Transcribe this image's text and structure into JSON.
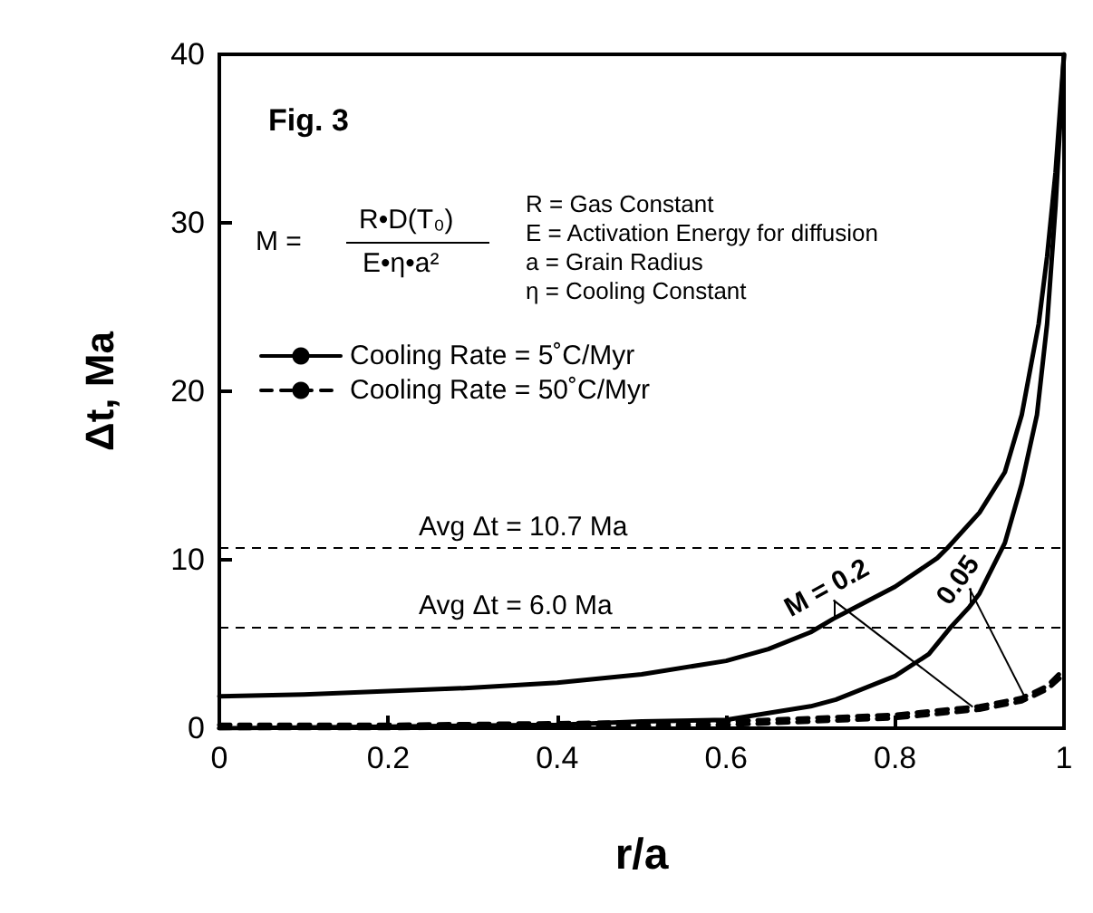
{
  "chart_data": {
    "type": "line",
    "title": "Fig. 3",
    "xlabel": "r/a",
    "ylabel": "Δt, Ma",
    "xlim": [
      0,
      1
    ],
    "xticks": [
      0,
      0.2,
      0.4,
      0.6,
      0.8,
      1
    ],
    "ylim": [
      0,
      40
    ],
    "yticks": [
      0,
      10,
      20,
      30,
      40
    ],
    "grid": false,
    "legend": "top left",
    "marker": "none",
    "series": [
      {
        "name": "Cooling Rate = 5˚C/Myr",
        "color": "#000000",
        "line_style": "solid",
        "x": [
          0,
          0.1,
          0.2,
          0.3,
          0.4,
          0.5,
          0.6,
          0.65,
          0.7,
          0.727,
          0.75,
          0.8,
          0.85,
          0.862,
          0.9,
          0.93,
          0.95,
          0.97,
          0.98,
          0.99,
          1
        ],
        "values": [
          1.9,
          2.0,
          2.2,
          2.4,
          2.7,
          3.2,
          4.0,
          4.7,
          5.7,
          6.5,
          7.1,
          8.4,
          10.1,
          10.7,
          12.8,
          15.2,
          18.6,
          24,
          28,
          33,
          40
        ]
      },
      {
        "color": "#000000",
        "line_style": "solid",
        "x": [
          0,
          0.2,
          0.4,
          0.5,
          0.6,
          0.7,
          0.73,
          0.8,
          0.84,
          0.866,
          0.888,
          0.9,
          0.93,
          0.95,
          0.968,
          0.98,
          0.99,
          1
        ],
        "values": [
          0.0,
          0.1,
          0.2,
          0.4,
          0.5,
          1.3,
          1.7,
          3.1,
          4.4,
          6.0,
          7.2,
          8.0,
          11,
          14.5,
          18.6,
          24,
          31,
          40
        ]
      },
      {
        "name": "Cooling Rate = 50˚C/Myr",
        "color": "#000000",
        "line_style": "dashed",
        "x": [
          0,
          0.2,
          0.4,
          0.6,
          0.7,
          0.8,
          0.9,
          0.95,
          0.98,
          1
        ],
        "values": [
          0.2,
          0.2,
          0.3,
          0.4,
          0.6,
          0.8,
          1.3,
          1.8,
          2.5,
          3.5
        ]
      },
      {
        "color": "#000000",
        "line_style": "dashed",
        "x": [
          0,
          0.2,
          0.4,
          0.6,
          0.7,
          0.8,
          0.9,
          0.95,
          0.98,
          1
        ],
        "values": [
          0.0,
          0.0,
          0.1,
          0.2,
          0.4,
          0.6,
          1.1,
          1.6,
          2.3,
          3.2
        ]
      }
    ],
    "ref_lines": [
      {
        "axis": "y",
        "value": 10.7,
        "label": "Avg Δt = 10.7 Ma",
        "line_style": "dashed"
      },
      {
        "axis": "y",
        "value": 6.0,
        "label": "Avg Δt = 6.0 Ma",
        "line_style": "dashed"
      }
    ],
    "annotations": [
      {
        "text": "M = 0.2",
        "x": 0.727,
        "y": 6.5
      },
      {
        "text": "0.05",
        "x": 0.888,
        "y": 7.2
      },
      "M =",
      "R•D(T₀)",
      "E•η•a²",
      "R = Gas Constant",
      "E = Activation Energy for diffusion",
      "a = Grain Radius",
      "η = Cooling Constant"
    ]
  }
}
